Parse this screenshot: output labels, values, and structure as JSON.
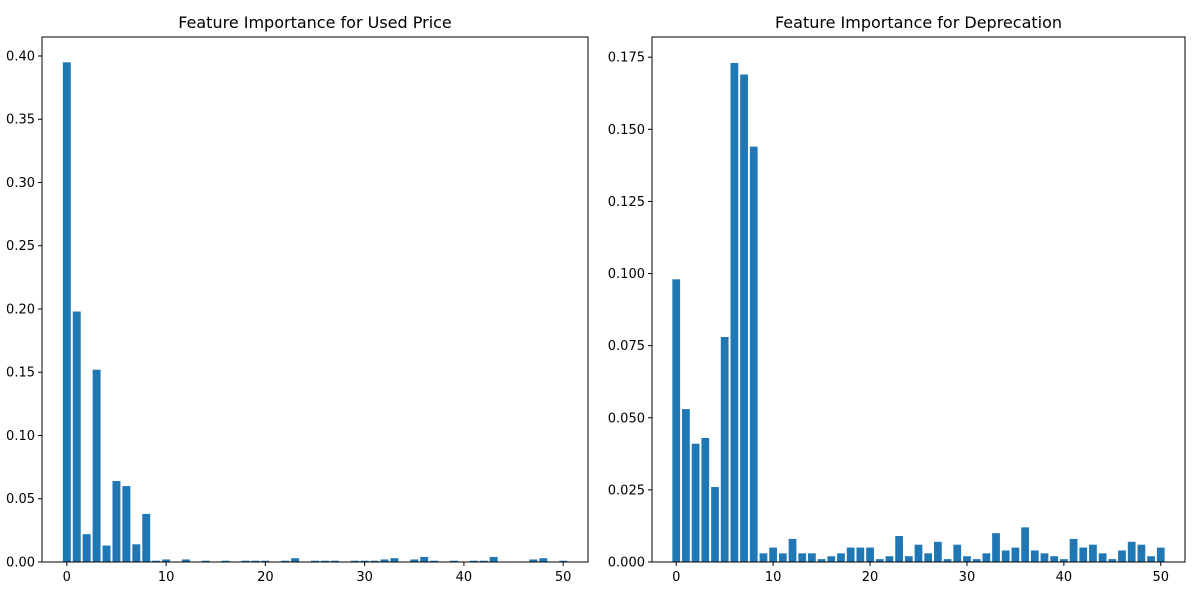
{
  "chart_data": [
    {
      "type": "bar",
      "title": "Feature Importance for Used Price",
      "xlabel": "",
      "ylabel": "",
      "xlim": [
        -2.5,
        52.5
      ],
      "ylim": [
        0,
        0.415
      ],
      "xticks": [
        0,
        10,
        20,
        30,
        40,
        50
      ],
      "xtick_labels": [
        "0",
        "10",
        "20",
        "30",
        "40",
        "50"
      ],
      "yticks": [
        0,
        0.05,
        0.1,
        0.15,
        0.2,
        0.25,
        0.3,
        0.35,
        0.4
      ],
      "ytick_labels": [
        "0.00",
        "0.05",
        "0.10",
        "0.15",
        "0.20",
        "0.25",
        "0.30",
        "0.35",
        "0.40"
      ],
      "grid": false,
      "color": "#1f77b4",
      "x": [
        0,
        1,
        2,
        3,
        4,
        5,
        6,
        7,
        8,
        9,
        10,
        11,
        12,
        13,
        14,
        15,
        16,
        17,
        18,
        19,
        20,
        21,
        22,
        23,
        24,
        25,
        26,
        27,
        28,
        29,
        30,
        31,
        32,
        33,
        34,
        35,
        36,
        37,
        38,
        39,
        40,
        41,
        42,
        43,
        44,
        45,
        46,
        47,
        48,
        49,
        50
      ],
      "values": [
        0.395,
        0.198,
        0.022,
        0.152,
        0.013,
        0.064,
        0.06,
        0.014,
        0.038,
        0.001,
        0.002,
        0.0,
        0.002,
        0.0,
        0.001,
        0.0,
        0.001,
        0.0,
        0.001,
        0.001,
        0.001,
        0.0,
        0.001,
        0.003,
        0.0,
        0.001,
        0.001,
        0.001,
        0.0,
        0.001,
        0.001,
        0.001,
        0.002,
        0.003,
        0.0,
        0.002,
        0.004,
        0.001,
        0.0,
        0.001,
        0.0,
        0.001,
        0.001,
        0.004,
        0.0,
        0.0,
        0.0,
        0.002,
        0.003,
        0.0,
        0.001
      ]
    },
    {
      "type": "bar",
      "title": "Feature Importance for Deprecation",
      "xlabel": "",
      "ylabel": "",
      "xlim": [
        -2.5,
        52.5
      ],
      "ylim": [
        0,
        0.182
      ],
      "xticks": [
        0,
        10,
        20,
        30,
        40,
        50
      ],
      "xtick_labels": [
        "0",
        "10",
        "20",
        "30",
        "40",
        "50"
      ],
      "yticks": [
        0,
        0.025,
        0.05,
        0.075,
        0.1,
        0.125,
        0.15,
        0.175
      ],
      "ytick_labels": [
        "0.000",
        "0.025",
        "0.050",
        "0.075",
        "0.100",
        "0.125",
        "0.150",
        "0.175"
      ],
      "grid": false,
      "color": "#1f77b4",
      "x": [
        0,
        1,
        2,
        3,
        4,
        5,
        6,
        7,
        8,
        9,
        10,
        11,
        12,
        13,
        14,
        15,
        16,
        17,
        18,
        19,
        20,
        21,
        22,
        23,
        24,
        25,
        26,
        27,
        28,
        29,
        30,
        31,
        32,
        33,
        34,
        35,
        36,
        37,
        38,
        39,
        40,
        41,
        42,
        43,
        44,
        45,
        46,
        47,
        48,
        49,
        50
      ],
      "values": [
        0.098,
        0.053,
        0.041,
        0.043,
        0.026,
        0.078,
        0.173,
        0.169,
        0.144,
        0.003,
        0.005,
        0.003,
        0.008,
        0.003,
        0.003,
        0.001,
        0.002,
        0.003,
        0.005,
        0.005,
        0.005,
        0.001,
        0.002,
        0.009,
        0.002,
        0.006,
        0.003,
        0.007,
        0.001,
        0.006,
        0.002,
        0.001,
        0.003,
        0.01,
        0.004,
        0.005,
        0.012,
        0.004,
        0.003,
        0.002,
        0.001,
        0.008,
        0.005,
        0.006,
        0.003,
        0.001,
        0.004,
        0.007,
        0.006,
        0.002,
        0.005
      ]
    }
  ]
}
